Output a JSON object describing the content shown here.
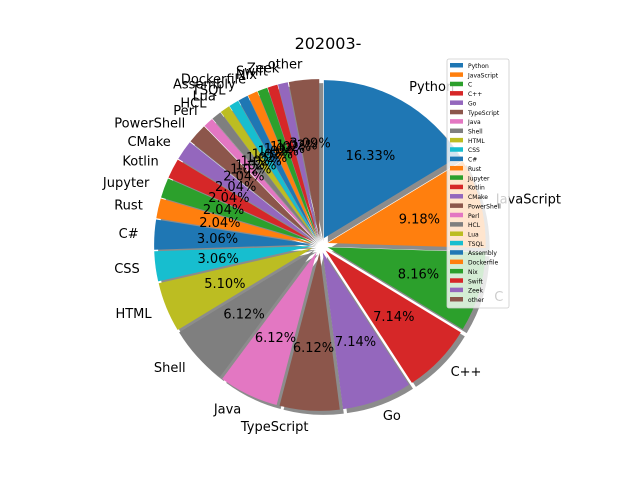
{
  "chart_data": {
    "type": "pie",
    "title": "202003-",
    "start_angle_deg": 90,
    "direction": "clockwise",
    "shadow": true,
    "exploded": true,
    "legend_placement": "right",
    "slices": [
      {
        "label": "Python",
        "value": 16.33,
        "pct_label": "16.33%",
        "color": "#1f77b4"
      },
      {
        "label": "JavaScript",
        "value": 9.18,
        "pct_label": "9.18%",
        "color": "#ff7f0e"
      },
      {
        "label": "C",
        "value": 8.16,
        "pct_label": "8.16%",
        "color": "#2ca02c"
      },
      {
        "label": "C++",
        "value": 7.14,
        "pct_label": "7.14%",
        "color": "#d62728"
      },
      {
        "label": "Go",
        "value": 7.14,
        "pct_label": "7.14%",
        "color": "#9467bd"
      },
      {
        "label": "TypeScript",
        "value": 6.12,
        "pct_label": "6.12%",
        "color": "#8c564b"
      },
      {
        "label": "Java",
        "value": 6.12,
        "pct_label": "6.12%",
        "color": "#e377c2"
      },
      {
        "label": "Shell",
        "value": 6.12,
        "pct_label": "6.12%",
        "color": "#7f7f7f"
      },
      {
        "label": "HTML",
        "value": 5.1,
        "pct_label": "5.10%",
        "color": "#bcbd22"
      },
      {
        "label": "CSS",
        "value": 3.06,
        "pct_label": "3.06%",
        "color": "#17becf"
      },
      {
        "label": "C#",
        "value": 3.06,
        "pct_label": "3.06%",
        "color": "#1f77b4"
      },
      {
        "label": "Rust",
        "value": 2.04,
        "pct_label": "2.04%",
        "color": "#ff7f0e"
      },
      {
        "label": "Jupyter",
        "value": 2.04,
        "pct_label": "2.04%",
        "color": "#2ca02c"
      },
      {
        "label": "Kotlin",
        "value": 2.04,
        "pct_label": "2.04%",
        "color": "#d62728"
      },
      {
        "label": "CMake",
        "value": 2.04,
        "pct_label": "2.04%",
        "color": "#9467bd"
      },
      {
        "label": "PowerShell",
        "value": 2.04,
        "pct_label": "2.04%",
        "color": "#8c564b"
      },
      {
        "label": "Perl",
        "value": 1.02,
        "pct_label": "1.02%",
        "color": "#e377c2"
      },
      {
        "label": "HCL",
        "value": 1.02,
        "pct_label": "1.02%",
        "color": "#7f7f7f"
      },
      {
        "label": "Lua",
        "value": 1.02,
        "pct_label": "1.02%",
        "color": "#bcbd22"
      },
      {
        "label": "TSQL",
        "value": 1.02,
        "pct_label": "1.02%",
        "color": "#17becf"
      },
      {
        "label": "Assembly",
        "value": 1.02,
        "pct_label": "1.02%",
        "color": "#1f77b4"
      },
      {
        "label": "Dockerfile",
        "value": 1.02,
        "pct_label": "1.02%",
        "color": "#ff7f0e"
      },
      {
        "label": "Nix",
        "value": 1.02,
        "pct_label": "1.02%",
        "color": "#2ca02c"
      },
      {
        "label": "Swift",
        "value": 1.02,
        "pct_label": "1.02%",
        "color": "#d62728"
      },
      {
        "label": "Zeek",
        "value": 1.02,
        "pct_label": "1.02%",
        "color": "#9467bd"
      },
      {
        "label": "other",
        "value": 3.09,
        "pct_label": "3.09%",
        "color": "#8c564b"
      }
    ]
  }
}
